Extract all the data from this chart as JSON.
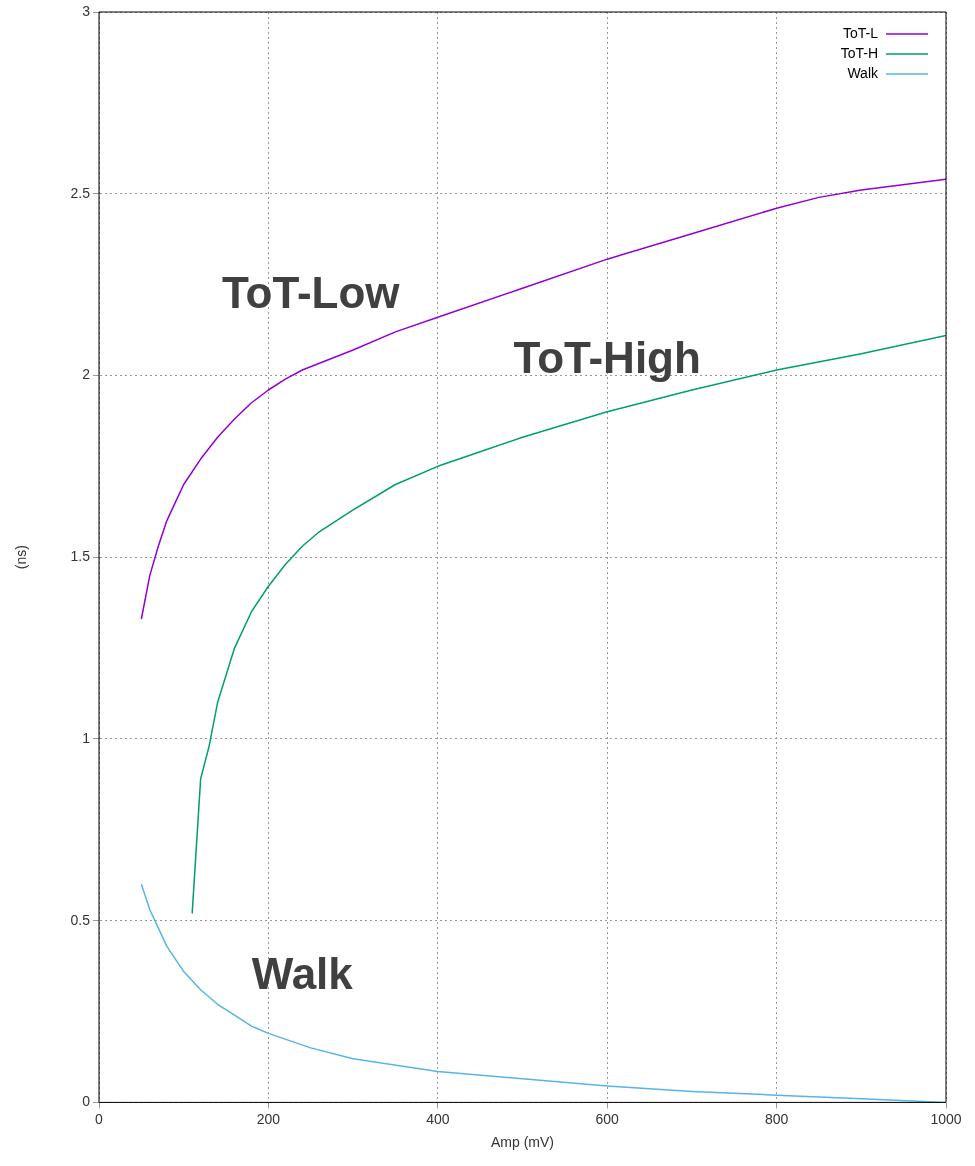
{
  "chart_data": {
    "type": "line",
    "xlabel": "Amp (mV)",
    "ylabel": "(ns)",
    "xlim": [
      0,
      1000
    ],
    "xticks": [
      0,
      200,
      400,
      600,
      800,
      1000
    ],
    "ylim": [
      0,
      3
    ],
    "yticks": [
      0,
      0.5,
      1,
      1.5,
      2,
      2.5,
      3
    ],
    "grid": true,
    "legend": "top right",
    "marker": "none",
    "line_style": "solid",
    "series": [
      {
        "name": "ToT-L",
        "color": "#9400d3",
        "x": [
          50,
          60,
          70,
          80,
          90,
          100,
          120,
          140,
          160,
          180,
          200,
          220,
          240,
          300,
          350,
          400,
          500,
          600,
          700,
          800,
          850,
          900,
          1000
        ],
        "values": [
          1.33,
          1.45,
          1.53,
          1.6,
          1.65,
          1.7,
          1.77,
          1.83,
          1.88,
          1.925,
          1.96,
          1.99,
          2.015,
          2.07,
          2.12,
          2.16,
          2.24,
          2.32,
          2.39,
          2.46,
          2.49,
          2.51,
          2.54
        ]
      },
      {
        "name": "ToT-H",
        "color": "#009e73",
        "x": [
          110,
          120,
          130,
          140,
          160,
          180,
          200,
          220,
          240,
          260,
          280,
          300,
          350,
          400,
          450,
          500,
          600,
          700,
          800,
          900,
          1000
        ],
        "values": [
          0.52,
          0.89,
          0.98,
          1.1,
          1.25,
          1.35,
          1.42,
          1.48,
          1.53,
          1.57,
          1.6,
          1.63,
          1.7,
          1.75,
          1.79,
          1.83,
          1.9,
          1.96,
          2.015,
          2.06,
          2.11
        ]
      },
      {
        "name": "Walk",
        "color": "#56b4e9",
        "x": [
          50,
          60,
          70,
          80,
          100,
          120,
          140,
          160,
          180,
          200,
          250,
          300,
          400,
          500,
          600,
          700,
          800,
          900,
          1000
        ],
        "values": [
          0.6,
          0.53,
          0.48,
          0.43,
          0.36,
          0.31,
          0.27,
          0.24,
          0.21,
          0.19,
          0.15,
          0.12,
          0.085,
          0.065,
          0.045,
          0.03,
          0.02,
          0.01,
          0
        ]
      }
    ],
    "annotations": [
      "ToT-Low",
      "ToT-High",
      "Walk"
    ]
  }
}
